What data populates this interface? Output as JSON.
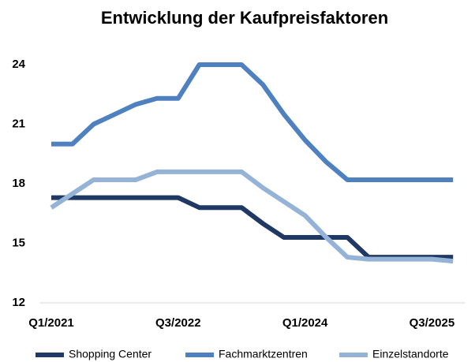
{
  "chart_data": {
    "type": "line",
    "title": "Entwicklung der Kaufpreisfaktoren",
    "categories": [
      "Q1/2021",
      null,
      null,
      null,
      null,
      null,
      "Q3/2022",
      null,
      null,
      null,
      null,
      null,
      "Q1/2024",
      null,
      null,
      null,
      null,
      null,
      "Q3/2025",
      null
    ],
    "series": [
      {
        "name": "Shopping Center",
        "color": "#1f3864",
        "values": [
          17.3,
          17.3,
          17.3,
          17.3,
          17.3,
          17.3,
          17.3,
          16.8,
          16.8,
          16.8,
          16,
          15.3,
          15.3,
          15.3,
          15.3,
          14.3,
          14.3,
          14.3,
          14.3,
          14.3
        ]
      },
      {
        "name": "Fachmarktzentren",
        "color": "#4f81c1",
        "values": [
          20,
          20,
          21,
          21.5,
          22,
          22.3,
          22.3,
          24,
          24,
          24,
          23,
          21.5,
          20.2,
          19.1,
          18.2,
          18.2,
          18.2,
          18.2,
          18.2,
          18.2
        ]
      },
      {
        "name": "Einzelstandorte",
        "color": "#95b3d7",
        "values": [
          16.8,
          17.5,
          18.2,
          18.2,
          18.2,
          18.6,
          18.6,
          18.6,
          18.6,
          18.6,
          17.8,
          17.1,
          16.4,
          15.3,
          14.3,
          14.2,
          14.2,
          14.2,
          14.2,
          14.1
        ]
      }
    ],
    "ylim": [
      12,
      24
    ],
    "yticks": [
      12,
      15,
      18,
      21,
      24
    ],
    "grid": false
  }
}
